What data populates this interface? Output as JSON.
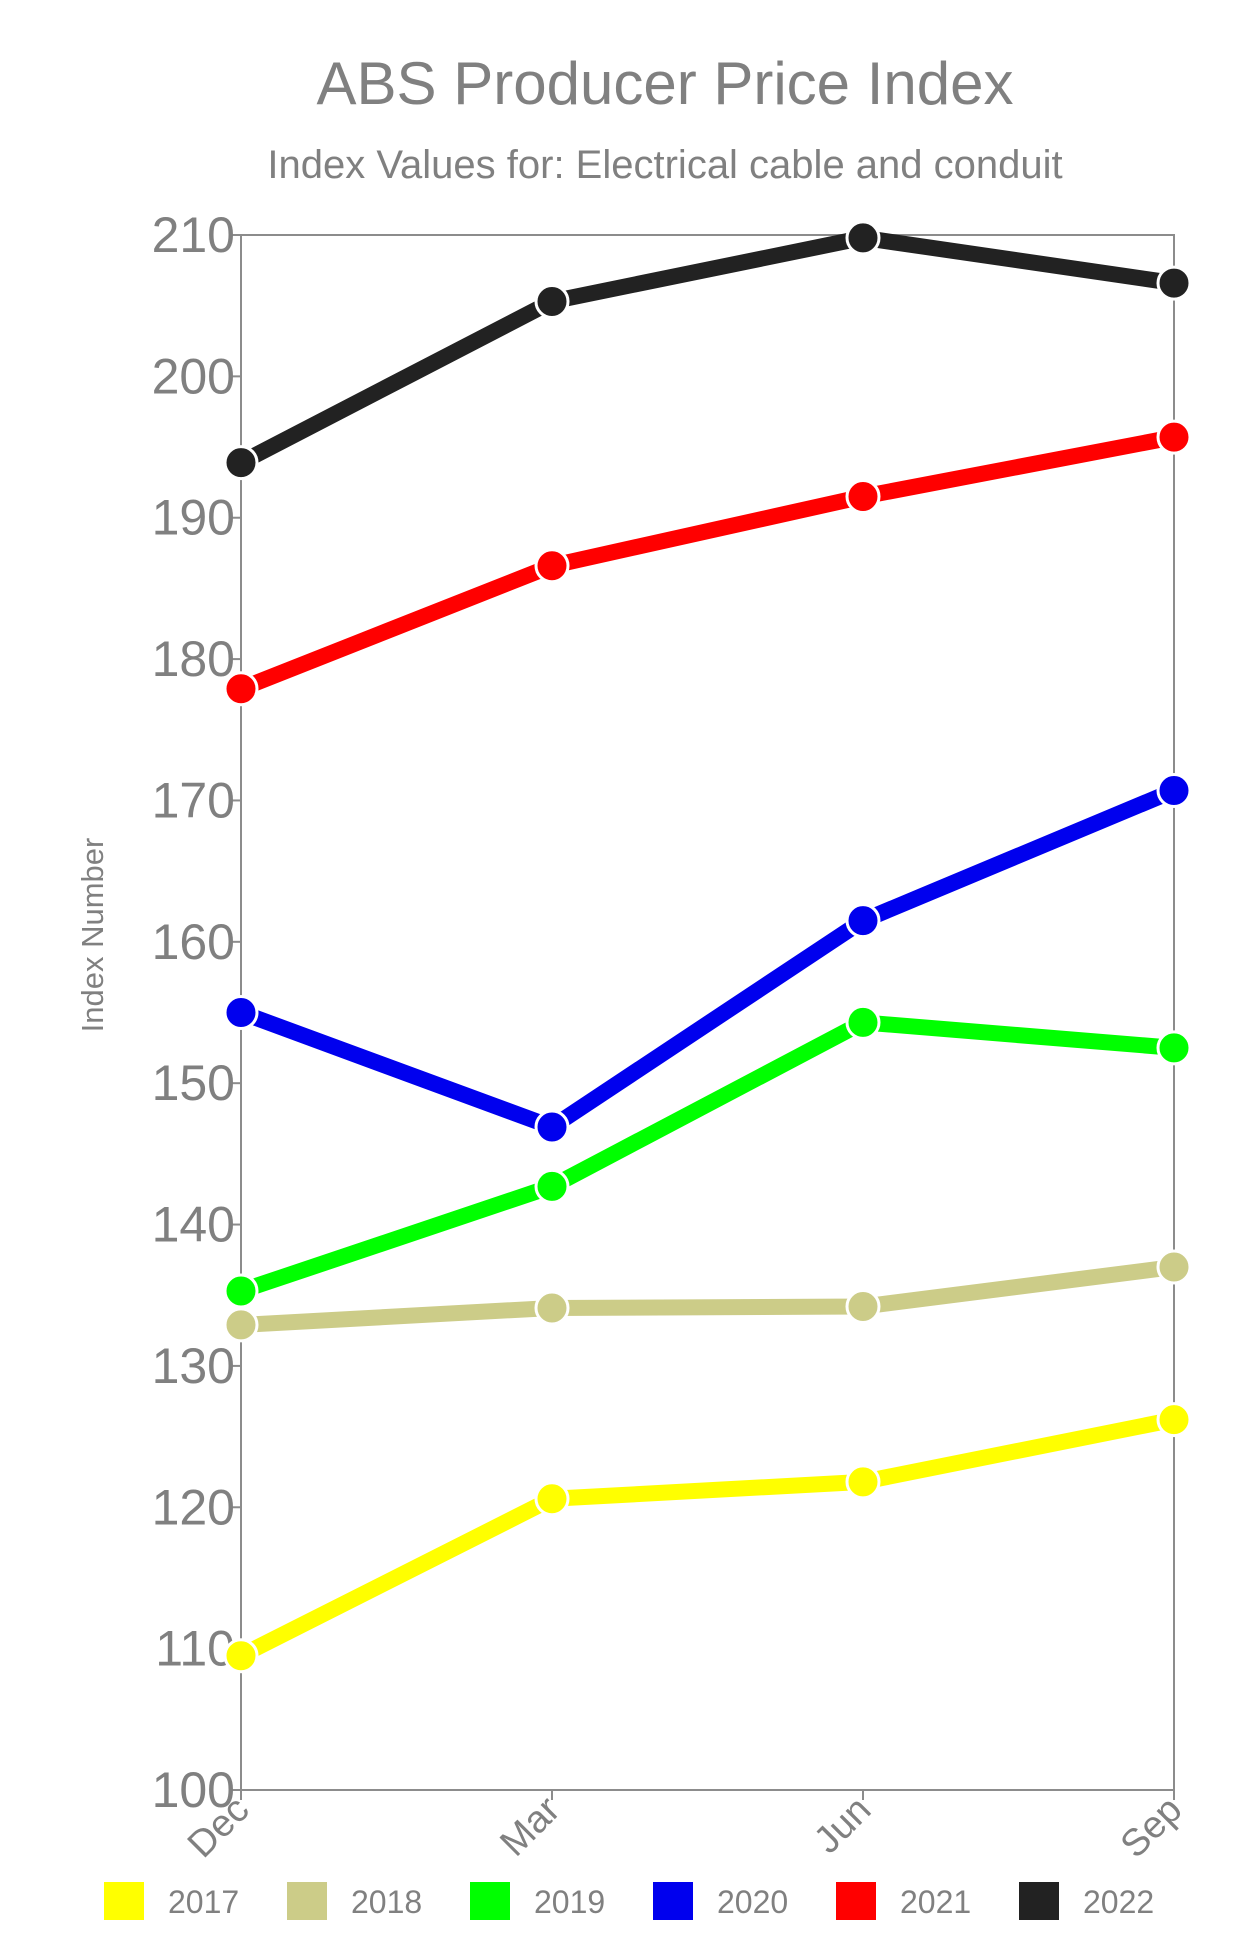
{
  "chart_data": {
    "type": "line",
    "title": "ABS Producer Price Index",
    "subtitle": "Index Values for: Electrical cable and conduit",
    "ylabel": "Index Number",
    "xlabel": "",
    "categories": [
      "Dec",
      "Mar",
      "Jun",
      "Sep"
    ],
    "ylim": [
      100,
      210
    ],
    "yticks": [
      "100",
      "110",
      "120",
      "130",
      "140",
      "150",
      "160",
      "170",
      "180",
      "190",
      "200",
      "210"
    ],
    "grid": false,
    "legend_position": "bottom",
    "series": [
      {
        "name": "2017",
        "color": "#ffff00",
        "values": [
          109.5,
          120.6,
          121.8,
          126.2
        ]
      },
      {
        "name": "2018",
        "color": "#cccc88",
        "values": [
          132.9,
          134.1,
          134.2,
          137.0
        ]
      },
      {
        "name": "2019",
        "color": "#00ff00",
        "values": [
          135.3,
          142.7,
          154.3,
          152.5
        ]
      },
      {
        "name": "2020",
        "color": "#0000ee",
        "values": [
          155.0,
          146.9,
          161.5,
          170.7
        ]
      },
      {
        "name": "2021",
        "color": "#ff0000",
        "values": [
          177.9,
          186.6,
          191.5,
          195.7
        ]
      },
      {
        "name": "2022",
        "color": "#222222",
        "values": [
          193.9,
          205.3,
          209.8,
          206.6
        ]
      }
    ]
  },
  "colors": {
    "text": "#808080",
    "axis": "#8c8c8c",
    "marker_outline": "#ffffff"
  }
}
